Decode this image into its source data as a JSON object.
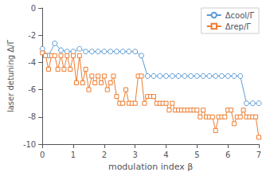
{
  "chart_data": {
    "type": "line",
    "xlabel": "modulation index β",
    "ylabel": "laser detuning Δ/Γ",
    "xlim": [
      0,
      7
    ],
    "ylim": [
      -10,
      0
    ],
    "xticks": [
      0,
      1,
      2,
      3,
      4,
      5,
      6,
      7
    ],
    "yticks": [
      0,
      -2,
      -4,
      -6,
      -8,
      -10
    ],
    "grid": false,
    "legend": "upper right",
    "series": [
      {
        "name": "Δcool/Γ",
        "color": "#5b9bd5",
        "marker": "circle",
        "x": [
          0.0,
          0.2,
          0.4,
          0.6,
          0.8,
          1.0,
          1.2,
          1.4,
          1.6,
          1.8,
          2.0,
          2.2,
          2.4,
          2.6,
          2.8,
          3.0,
          3.2,
          3.4,
          3.6,
          3.8,
          4.0,
          4.2,
          4.4,
          4.6,
          4.8,
          5.0,
          5.2,
          5.4,
          5.6,
          5.8,
          6.0,
          6.2,
          6.4,
          6.6,
          6.8,
          7.0
        ],
        "values": [
          -3.0,
          -3.5,
          -2.6,
          -3.1,
          -3.2,
          -3.2,
          -3.0,
          -3.2,
          -3.2,
          -3.2,
          -3.2,
          -3.2,
          -3.2,
          -3.2,
          -3.2,
          -3.2,
          -3.5,
          -5.0,
          -5.0,
          -5.0,
          -5.0,
          -5.0,
          -5.0,
          -5.0,
          -5.0,
          -5.0,
          -5.0,
          -5.0,
          -5.0,
          -5.0,
          -5.0,
          -5.0,
          -5.0,
          -7.0,
          -7.0,
          -7.0
        ]
      },
      {
        "name": "Δrep/Γ",
        "color": "#ed7d31",
        "marker": "square",
        "x": [
          0.0,
          0.1,
          0.2,
          0.3,
          0.4,
          0.5,
          0.6,
          0.7,
          0.8,
          0.9,
          1.0,
          1.1,
          1.2,
          1.3,
          1.4,
          1.5,
          1.6,
          1.7,
          1.8,
          1.9,
          2.0,
          2.1,
          2.2,
          2.3,
          2.4,
          2.5,
          2.6,
          2.7,
          2.8,
          2.9,
          3.0,
          3.1,
          3.2,
          3.3,
          3.4,
          3.5,
          3.6,
          3.7,
          3.8,
          3.9,
          4.0,
          4.1,
          4.2,
          4.3,
          4.4,
          4.5,
          4.6,
          4.7,
          4.8,
          4.9,
          5.0,
          5.1,
          5.2,
          5.3,
          5.4,
          5.5,
          5.6,
          5.7,
          5.8,
          5.9,
          6.0,
          6.1,
          6.2,
          6.3,
          6.4,
          6.5,
          6.6,
          6.7,
          6.8,
          6.9,
          7.0
        ],
        "values": [
          -3.3,
          -3.5,
          -4.5,
          -3.5,
          -3.5,
          -4.5,
          -3.5,
          -4.5,
          -3.5,
          -4.5,
          -3.5,
          -5.5,
          -3.5,
          -5.5,
          -4.5,
          -6.0,
          -5.0,
          -5.5,
          -5.0,
          -5.5,
          -5.0,
          -6.0,
          -5.5,
          -5.0,
          -6.5,
          -7.0,
          -7.0,
          -6.0,
          -7.0,
          -7.0,
          -7.0,
          -5.0,
          -5.0,
          -7.0,
          -6.5,
          -6.5,
          -6.5,
          -7.0,
          -7.0,
          -7.0,
          -7.0,
          -7.5,
          -7.0,
          -7.5,
          -7.5,
          -7.5,
          -7.5,
          -7.5,
          -7.5,
          -7.5,
          -7.5,
          -8.0,
          -7.5,
          -8.0,
          -8.0,
          -8.0,
          -9.0,
          -8.0,
          -8.0,
          -8.0,
          -7.5,
          -7.5,
          -8.5,
          -8.0,
          -8.0,
          -7.5,
          -8.0,
          -8.0,
          -8.0,
          -8.0,
          -9.5
        ]
      }
    ]
  }
}
